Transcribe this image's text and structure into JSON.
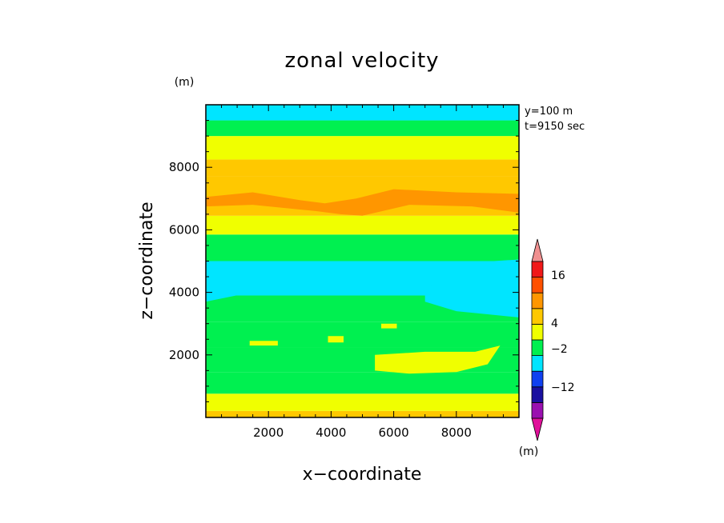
{
  "chart_data": {
    "type": "heatmap",
    "title": "zonal velocity",
    "xlabel": "x−coordinate",
    "ylabel": "z−coordinate",
    "y_unit": "(m)",
    "x_unit": "(m)",
    "annotations": [
      "y=100 m",
      "t=9150 sec"
    ],
    "xlim": [
      0,
      10000
    ],
    "ylim": [
      0,
      10000
    ],
    "x_ticks": [
      {
        "value": 2000,
        "label": "2000"
      },
      {
        "value": 4000,
        "label": "4000"
      },
      {
        "value": 6000,
        "label": "6000"
      },
      {
        "value": 8000,
        "label": "8000"
      }
    ],
    "y_ticks": [
      {
        "value": 2000,
        "label": "2000"
      },
      {
        "value": 4000,
        "label": "4000"
      },
      {
        "value": 6000,
        "label": "6000"
      },
      {
        "value": 8000,
        "label": "8000"
      }
    ],
    "colorbar": {
      "colors": [
        "#e0109a",
        "#9a10b0",
        "#1a10a0",
        "#1040f0",
        "#00e5ff",
        "#00f050",
        "#f0ff00",
        "#ffc800",
        "#ff9600",
        "#ff5000",
        "#f01818",
        "#f09090"
      ],
      "tick_labels": [
        "16",
        "4",
        "−2",
        "−12"
      ]
    },
    "bands": [
      {
        "z": [
          0,
          210
        ],
        "color": "#ffc800"
      },
      {
        "z": [
          210,
          760
        ],
        "color": "#f0ff00"
      },
      {
        "z": [
          760,
          1450
        ],
        "color": "#00f050"
      },
      {
        "z": [
          1450,
          2250
        ],
        "color": "#00f050"
      },
      {
        "z": [
          2250,
          3050
        ],
        "color": "#00f050"
      },
      {
        "z": [
          3050,
          3900
        ],
        "color": "#00f050"
      },
      {
        "z": [
          3900,
          5000
        ],
        "color": "#00e5ff"
      },
      {
        "z": [
          5000,
          5850
        ],
        "color": "#00f050"
      },
      {
        "z": [
          5850,
          6450
        ],
        "color": "#f0ff00"
      },
      {
        "z": [
          6450,
          7700
        ],
        "color": "#ffc800"
      },
      {
        "z": [
          7700,
          8250
        ],
        "color": "#ffc800"
      },
      {
        "z": [
          8250,
          9000
        ],
        "color": "#f0ff00"
      },
      {
        "z": [
          9000,
          9500
        ],
        "color": "#00f050"
      },
      {
        "z": [
          9500,
          10000
        ],
        "color": "#00e5ff"
      }
    ],
    "patches": [
      {
        "color": "#ff9600",
        "points": [
          [
            0,
            7050
          ],
          [
            1500,
            7200
          ],
          [
            3000,
            6950
          ],
          [
            3800,
            6850
          ],
          [
            4800,
            7000
          ],
          [
            6000,
            7300
          ],
          [
            8000,
            7200
          ],
          [
            10000,
            7150
          ],
          [
            10000,
            6550
          ],
          [
            8500,
            6750
          ],
          [
            6500,
            6800
          ],
          [
            5000,
            6450
          ],
          [
            4300,
            6500
          ],
          [
            3500,
            6600
          ],
          [
            1500,
            6800
          ],
          [
            0,
            6750
          ]
        ]
      },
      {
        "color": "#00e5ff",
        "points": [
          [
            7000,
            4100
          ],
          [
            8000,
            4800
          ],
          [
            9200,
            5000
          ],
          [
            10000,
            5050
          ],
          [
            10000,
            3200
          ],
          [
            9000,
            3300
          ],
          [
            8000,
            3400
          ],
          [
            7000,
            3700
          ]
        ]
      },
      {
        "color": "#f0ff00",
        "points": [
          [
            5400,
            1500
          ],
          [
            5400,
            2000
          ],
          [
            7000,
            2100
          ],
          [
            8600,
            2100
          ],
          [
            9400,
            2300
          ],
          [
            9000,
            1700
          ],
          [
            8000,
            1450
          ],
          [
            6500,
            1400
          ]
        ]
      },
      {
        "color": "#f0ff00",
        "points": [
          [
            1400,
            2450
          ],
          [
            2300,
            2450
          ],
          [
            2300,
            2300
          ],
          [
            1400,
            2300
          ]
        ]
      },
      {
        "color": "#f0ff00",
        "points": [
          [
            3900,
            2600
          ],
          [
            4400,
            2600
          ],
          [
            4400,
            2400
          ],
          [
            3900,
            2400
          ]
        ]
      },
      {
        "color": "#f0ff00",
        "points": [
          [
            5600,
            3000
          ],
          [
            6100,
            3000
          ],
          [
            6100,
            2850
          ],
          [
            5600,
            2850
          ]
        ]
      },
      {
        "color": "#00e5ff",
        "points": [
          [
            0,
            3700
          ],
          [
            1200,
            3950
          ],
          [
            2200,
            4000
          ],
          [
            1000,
            4100
          ],
          [
            0,
            4050
          ]
        ]
      }
    ]
  }
}
